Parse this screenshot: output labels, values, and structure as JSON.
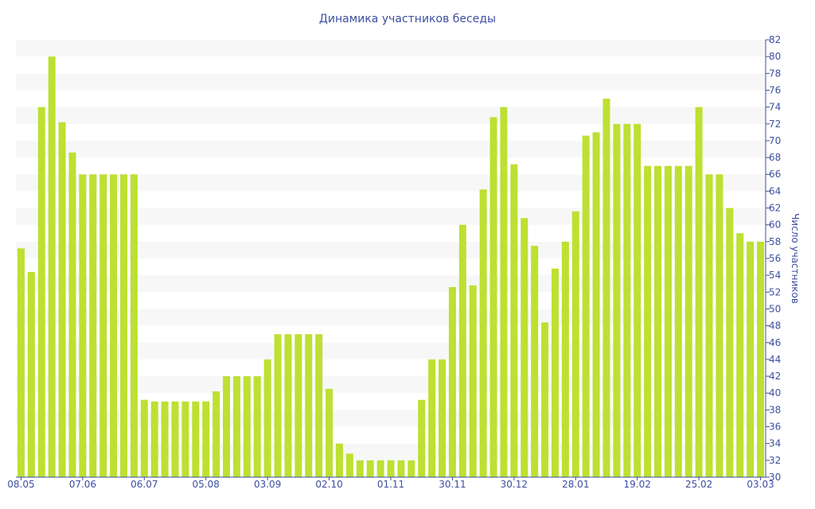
{
  "chart_data": {
    "type": "bar",
    "title": "Динамика участников беседы",
    "xlabel": "",
    "ylabel": "Число участников",
    "ylim": [
      30,
      82
    ],
    "ytick_step": 2,
    "grid": "horizontal alternating bands",
    "y_axis_side": "right",
    "bar_color": "#bde032",
    "text_color": "#3c4fa0",
    "x_tick_labels": [
      {
        "index": 0,
        "label": "08.05"
      },
      {
        "index": 6,
        "label": "07.06"
      },
      {
        "index": 12,
        "label": "06.07"
      },
      {
        "index": 18,
        "label": "05.08"
      },
      {
        "index": 24,
        "label": "03.09"
      },
      {
        "index": 30,
        "label": "02.10"
      },
      {
        "index": 36,
        "label": "01.11"
      },
      {
        "index": 42,
        "label": "30.11"
      },
      {
        "index": 48,
        "label": "30.12"
      },
      {
        "index": 54,
        "label": "28.01"
      },
      {
        "index": 60,
        "label": "19.02"
      },
      {
        "index": 66,
        "label": "25.02"
      },
      {
        "index": 72,
        "label": "03.03"
      }
    ],
    "values": [
      57.2,
      54.4,
      74,
      80,
      72.2,
      68.6,
      66,
      66,
      66,
      66,
      66,
      66,
      39.2,
      39,
      39,
      39,
      39,
      39,
      39,
      40.2,
      42,
      42,
      42,
      42,
      44,
      47,
      47,
      47,
      47,
      47,
      40.5,
      34,
      32.8,
      32,
      32,
      32,
      32,
      32,
      32,
      39.2,
      44,
      44,
      52.6,
      60,
      52.8,
      64.2,
      72.8,
      74,
      67.2,
      60.8,
      57.5,
      48.4,
      54.8,
      58,
      61.6,
      70.6,
      71,
      75,
      72,
      72,
      72,
      67,
      67,
      67,
      67,
      67,
      74,
      66,
      66,
      62,
      59,
      58,
      58
    ]
  }
}
